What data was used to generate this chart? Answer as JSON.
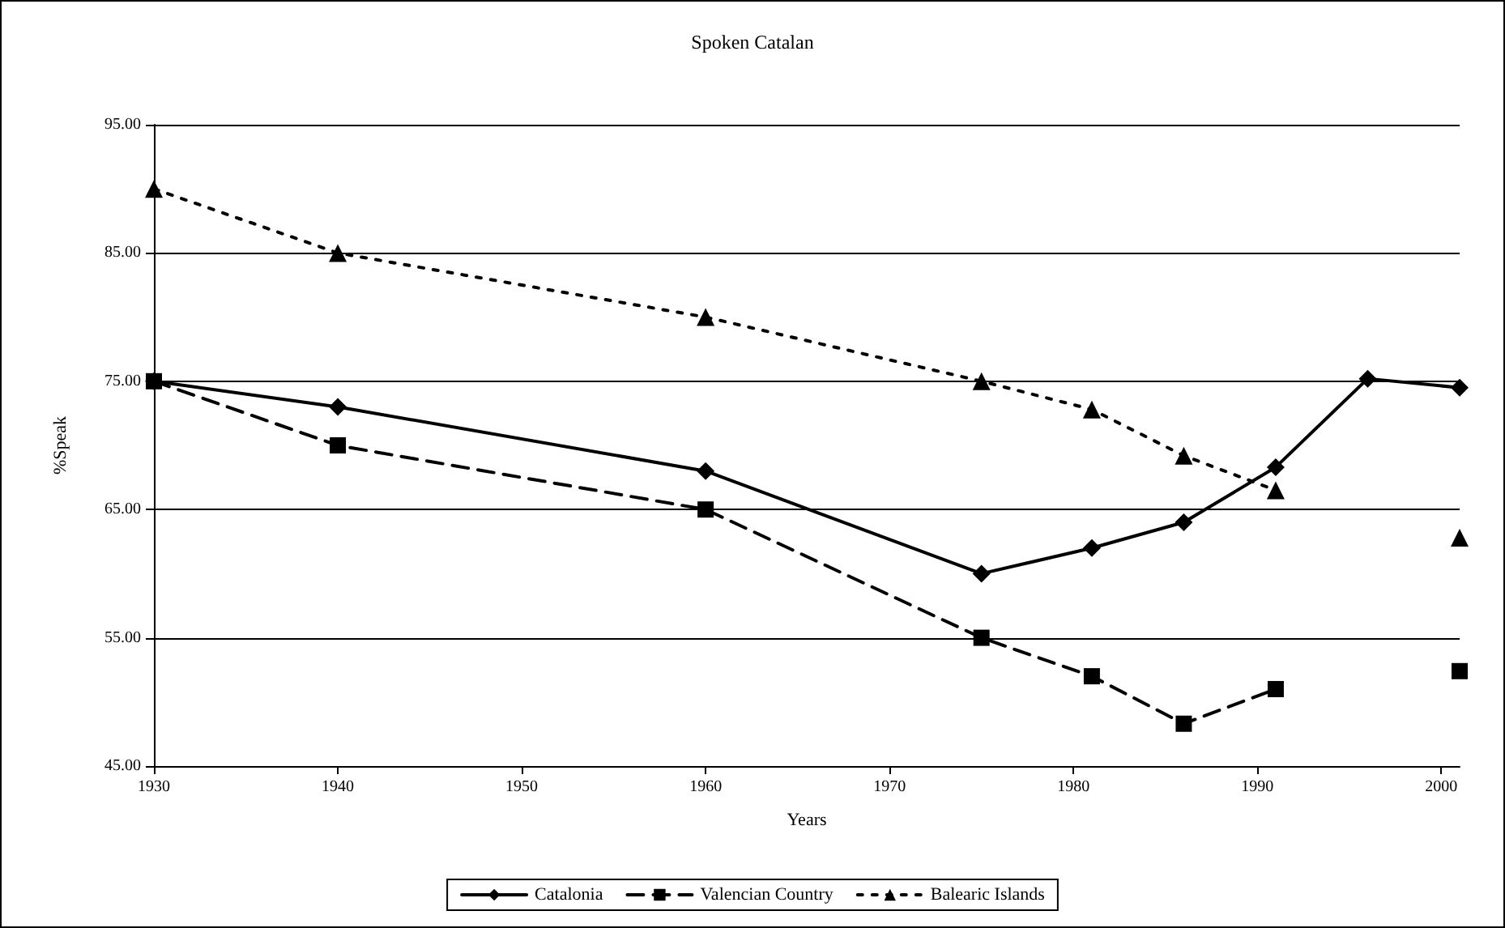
{
  "chart_data": {
    "type": "line",
    "title": "Spoken Catalan",
    "xlabel": "Years",
    "ylabel": "%Speak",
    "x": [
      1930,
      1940,
      1960,
      1975,
      1981,
      1986,
      1991,
      1996,
      2001
    ],
    "series": [
      {
        "name": "Catalonia",
        "color": "#000000",
        "marker": "diamond",
        "line_style": "solid",
        "values": [
          75,
          73,
          68,
          60,
          62,
          64,
          68.3,
          75.2,
          74.5
        ]
      },
      {
        "name": "Valencian Country",
        "color": "#000000",
        "marker": "square",
        "line_style": "dashed",
        "values": [
          75,
          70,
          65,
          55,
          52,
          48.3,
          51,
          null,
          52.4
        ]
      },
      {
        "name": "Balearic Islands",
        "color": "#000000",
        "marker": "triangle",
        "line_style": "dotted",
        "values": [
          90,
          85,
          80,
          75,
          72.8,
          69.2,
          66.5,
          null,
          62.8
        ]
      }
    ],
    "xlim": [
      1930,
      2001
    ],
    "xticks": [
      1930,
      1940,
      1950,
      1960,
      1970,
      1980,
      1990,
      2000
    ],
    "ylim": [
      45,
      95
    ],
    "yticks": [
      {
        "value": 45,
        "label": "45.00"
      },
      {
        "value": 55,
        "label": "55.00"
      },
      {
        "value": 65,
        "label": "65.00"
      },
      {
        "value": 75,
        "label": "75.00"
      },
      {
        "value": 85,
        "label": "85.00"
      },
      {
        "value": 95,
        "label": "95.00"
      }
    ],
    "grid": "y",
    "legend": "bottom"
  }
}
